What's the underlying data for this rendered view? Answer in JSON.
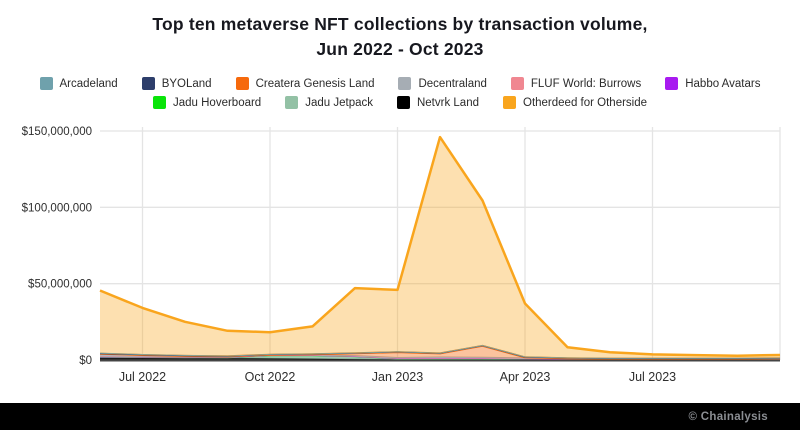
{
  "title": {
    "line1": "Top ten metaverse NFT collections by transaction volume,",
    "line2": "Jun 2022 - Oct 2023"
  },
  "legend": [
    {
      "id": "arcadeland",
      "label": "Arcadeland",
      "color": "#6FA1AC",
      "row": 1
    },
    {
      "id": "byoland",
      "label": "BYOLand",
      "color": "#2D3E6B",
      "row": 1
    },
    {
      "id": "createra-genesis-land",
      "label": "Createra Genesis Land",
      "color": "#F6690C",
      "row": 1
    },
    {
      "id": "decentraland",
      "label": "Decentraland",
      "color": "#A6ADB4",
      "row": 1
    },
    {
      "id": "fluf-world-burrows",
      "label": "FLUF World: Burrows",
      "color": "#F08791",
      "row": 1
    },
    {
      "id": "habbo-avatars",
      "label": "Habbo Avatars",
      "color": "#A81AF0",
      "row": 1
    },
    {
      "id": "jadu-hoverboard",
      "label": "Jadu Hoverboard",
      "color": "#09E409",
      "row": 2
    },
    {
      "id": "jadu-jetpack",
      "label": "Jadu Jetpack",
      "color": "#93C1A5",
      "row": 2
    },
    {
      "id": "netvrk-land",
      "label": "Netvrk Land",
      "color": "#000000",
      "row": 2
    },
    {
      "id": "otherdeed-for-otherside",
      "label": "Otherdeed for Otherside",
      "color": "#F9A51D",
      "row": 2
    }
  ],
  "footer": {
    "credit": "© Chainalysis"
  },
  "chart_data": {
    "type": "area",
    "stacked": true,
    "title": "Top ten metaverse NFT collections by transaction volume, Jun 2022 - Oct 2023",
    "unit": "USD transaction volume per month",
    "x": [
      "Jun 2022",
      "Jul 2022",
      "Aug 2022",
      "Sep 2022",
      "Oct 2022",
      "Nov 2022",
      "Dec 2022",
      "Jan 2023",
      "Feb 2023",
      "Mar 2023",
      "Apr 2023",
      "May 2023",
      "Jun 2023",
      "Jul 2023",
      "Aug 2023",
      "Sep 2023",
      "Oct 2023"
    ],
    "y_axis": {
      "min": 0,
      "max": 150000000,
      "tick_interval": 50000000,
      "tick_labels": [
        "$0",
        "$50,000,000",
        "$100,000,000",
        "$150,000,000"
      ],
      "grid": true
    },
    "x_axis": {
      "grid": true,
      "grid_month_indices": [
        1,
        4,
        7,
        10,
        13,
        16
      ],
      "labeled_ticks": [
        {
          "index": 1,
          "label": "Jul 2022"
        },
        {
          "index": 4,
          "label": "Oct 2022"
        },
        {
          "index": 7,
          "label": "Jan 2023"
        },
        {
          "index": 10,
          "label": "Apr 2023"
        },
        {
          "index": 13,
          "label": "Jul 2023"
        }
      ]
    },
    "legend_position": "top",
    "series_stack_order_note": "listed bottom-to-top of stack; values in millions of USD",
    "series": [
      {
        "name": "Netvrk Land",
        "color": "#000000",
        "fill_opacity": 0.85,
        "stroke_width": 1.2,
        "values_usd_millions": [
          1.6,
          1.5,
          1.4,
          1.2,
          1.0,
          0.8,
          0.6,
          0.4,
          0.5,
          0.5,
          0.4,
          0.3,
          0.2,
          0.2,
          0.2,
          0.2,
          0.2
        ]
      },
      {
        "name": "Jadu Jetpack",
        "color": "#93C1A5",
        "fill_opacity": 0.85,
        "stroke_width": 1.2,
        "values_usd_millions": [
          0.2,
          0.2,
          0.2,
          0.4,
          1.8,
          2.0,
          1.5,
          0.4,
          0.3,
          0.3,
          0.2,
          0.1,
          0.1,
          0.1,
          0.1,
          0.1,
          0.1
        ]
      },
      {
        "name": "Jadu Hoverboard",
        "color": "#09E409",
        "fill_opacity": 0.7,
        "stroke_width": 1,
        "values_usd_millions": [
          0.1,
          0.1,
          0.1,
          0.1,
          0.1,
          0.1,
          0.1,
          0.1,
          0.1,
          0.1,
          0.1,
          0.1,
          0.1,
          0.1,
          0.1,
          0.1,
          0.1
        ]
      },
      {
        "name": "Habbo Avatars",
        "color": "#A81AF0",
        "fill_opacity": 0.7,
        "stroke_width": 1,
        "values_usd_millions": [
          0.1,
          0.1,
          0.1,
          0.1,
          0.1,
          0.1,
          0.1,
          0.1,
          0.1,
          0.1,
          0.1,
          0.1,
          0.1,
          0.1,
          0.1,
          0.1,
          0.1
        ]
      },
      {
        "name": "FLUF World: Burrows",
        "color": "#F08791",
        "fill_opacity": 0.7,
        "stroke_width": 1,
        "values_usd_millions": [
          0.3,
          0.2,
          0.1,
          0.1,
          0.1,
          0.1,
          0.1,
          0.1,
          0.1,
          0.1,
          0.1,
          0.1,
          0.1,
          0.1,
          0.1,
          0.1,
          0.1
        ]
      },
      {
        "name": "Decentraland",
        "color": "#A6ADB4",
        "fill_opacity": 0.85,
        "stroke_width": 1.2,
        "values_usd_millions": [
          1.8,
          1.2,
          0.8,
          0.5,
          0.4,
          0.4,
          0.4,
          0.5,
          0.8,
          0.6,
          0.4,
          0.3,
          0.2,
          0.2,
          0.2,
          0.2,
          0.2
        ]
      },
      {
        "name": "Createra Genesis Land",
        "color": "#F6690C",
        "fill_opacity": 0.4,
        "stroke_width": 2,
        "values_usd_millions": [
          0,
          0,
          0,
          0,
          0,
          0.3,
          1.6,
          3.6,
          2.4,
          7.6,
          0.5,
          0.2,
          0.1,
          0.1,
          0.1,
          0.1,
          0.3
        ]
      },
      {
        "name": "BYOLand",
        "color": "#2D3E6B",
        "fill_opacity": 0.7,
        "stroke_width": 1,
        "values_usd_millions": [
          0.1,
          0.1,
          0.1,
          0.1,
          0.1,
          0.1,
          0.1,
          0.1,
          0.1,
          0.1,
          0.1,
          0.1,
          0.1,
          0.1,
          0.1,
          0.1,
          0.1
        ]
      },
      {
        "name": "Arcadeland",
        "color": "#6FA1AC",
        "fill_opacity": 0.7,
        "stroke_width": 1,
        "values_usd_millions": [
          0.3,
          0.2,
          0.2,
          0.1,
          0.1,
          0.1,
          0.1,
          0.1,
          0.1,
          0.1,
          0.1,
          0.1,
          0.1,
          0.1,
          0.1,
          0.1,
          0.1
        ]
      },
      {
        "name": "Otherdeed for Otherside",
        "color": "#F9A51D",
        "fill_opacity": 0.35,
        "stroke_width": 2.5,
        "values_usd_millions": [
          41,
          30.5,
          22,
          16.5,
          14.5,
          18,
          42.5,
          40.5,
          141.5,
          95,
          35,
          7,
          4,
          2.6,
          2.1,
          1.7,
          2.0
        ]
      }
    ]
  }
}
